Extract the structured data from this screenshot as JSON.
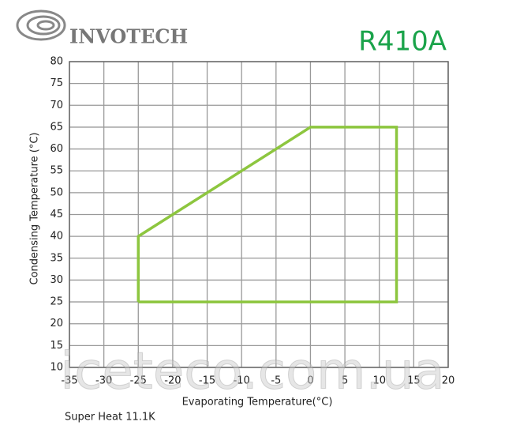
{
  "header": {
    "brand": "INVOTECH"
  },
  "chart_data": {
    "type": "line",
    "title": "R410A",
    "x_label": "Evaporating Temperature(°C)",
    "y_label": "Condensing Temperature (°C)",
    "annotation": "Super Heat 11.1K",
    "x": [
      -25,
      -25,
      0,
      12.5,
      12.5,
      -25
    ],
    "values": [
      25,
      40,
      65,
      65,
      25,
      25
    ],
    "color": "#8dc63f",
    "xlim": [
      -35,
      20
    ],
    "ylim": [
      10,
      80
    ],
    "xticks": [
      -35,
      -30,
      -25,
      -20,
      -15,
      -10,
      -5,
      0,
      5,
      10,
      15,
      20
    ],
    "yticks": [
      10,
      15,
      20,
      25,
      30,
      35,
      40,
      45,
      50,
      55,
      60,
      65,
      70,
      75,
      80
    ],
    "grid": true
  },
  "watermark": "iceteco.com.ua"
}
